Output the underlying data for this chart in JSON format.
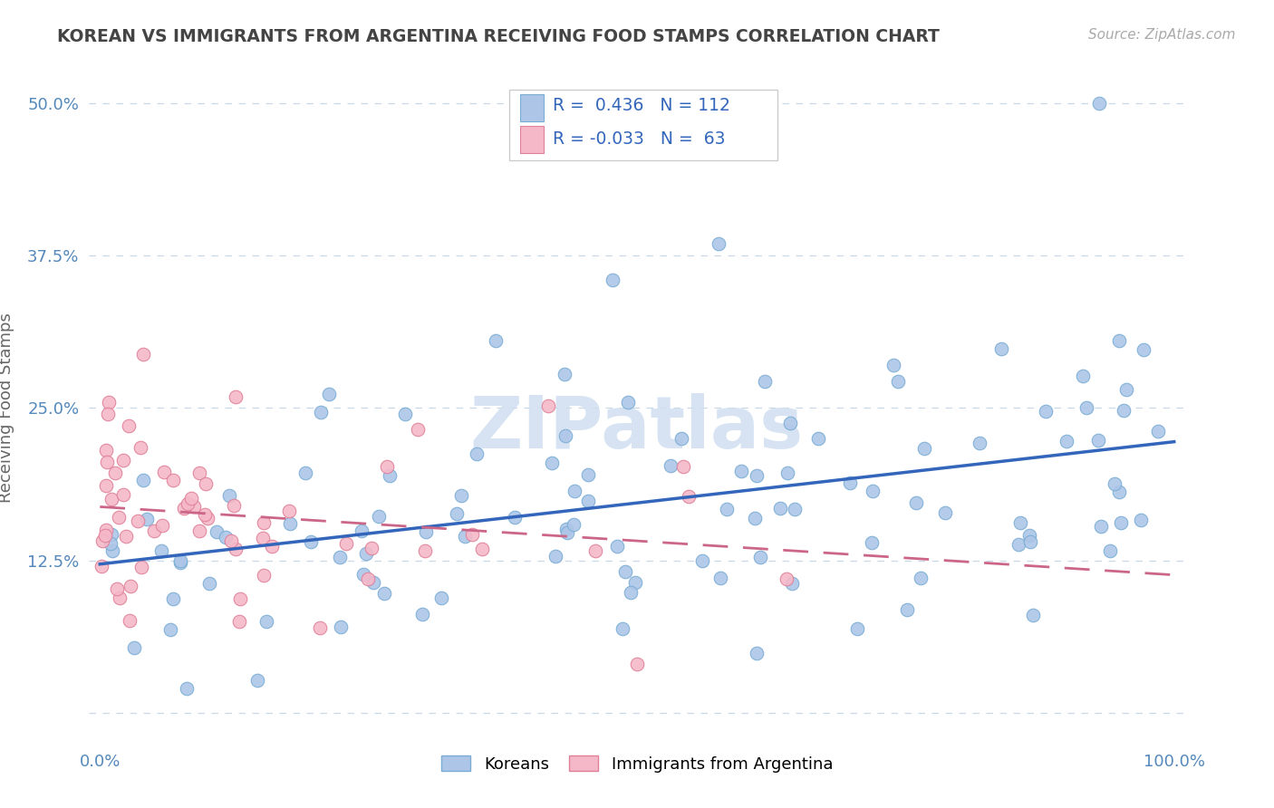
{
  "title": "KOREAN VS IMMIGRANTS FROM ARGENTINA RECEIVING FOOD STAMPS CORRELATION CHART",
  "source": "Source: ZipAtlas.com",
  "ylabel": "Receiving Food Stamps",
  "watermark": "ZIPatlas",
  "legend_blue_r": "0.436",
  "legend_blue_n": "112",
  "legend_pink_r": "-0.033",
  "legend_pink_n": "63",
  "legend_label_blue": "Koreans",
  "legend_label_pink": "Immigrants from Argentina",
  "blue_scatter_color": "#adc6e8",
  "blue_edge_color": "#7aadd4",
  "blue_line_color": "#3366bb",
  "pink_scatter_color": "#f5b8c8",
  "pink_edge_color": "#e08098",
  "pink_line_color": "#cc6688",
  "title_color": "#444444",
  "axis_label_color": "#666666",
  "tick_color": "#5588bb",
  "grid_color": "#c8d8e8",
  "background_color": "#ffffff",
  "watermark_color": "#d0dff0",
  "legend_text_color": "#3366bb",
  "legend_rn_color": "#3366bb",
  "xmin": -0.01,
  "xmax": 1.01,
  "ymin": -0.025,
  "ymax": 0.525,
  "yticks": [
    0.0,
    0.125,
    0.25,
    0.375,
    0.5
  ],
  "ytick_labels": [
    "",
    "12.5%",
    "25.0%",
    "37.5%",
    "50.0%"
  ],
  "xticks": [
    0.0,
    0.25,
    0.5,
    0.75,
    1.0
  ],
  "xtick_labels": [
    "0.0%",
    "",
    "",
    "",
    "100.0%"
  ]
}
